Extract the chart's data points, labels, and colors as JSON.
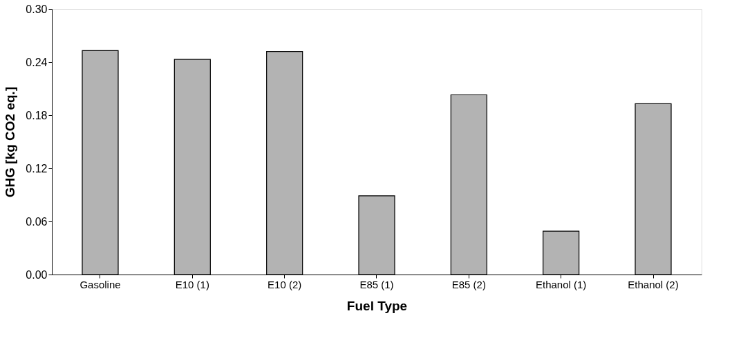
{
  "chart_data": {
    "type": "bar",
    "xlabel": "Fuel Type",
    "ylabel": "GHG [kg CO2 eq.]",
    "categories": [
      "Gasoline",
      "E10 (1)",
      "E10 (2)",
      "E85 (1)",
      "E85 (2)",
      "Ethanol (1)",
      "Ethanol (2)"
    ],
    "values": [
      0.253,
      0.243,
      0.252,
      0.089,
      0.203,
      0.049,
      0.193
    ],
    "color": "#b3b3b3",
    "ylim": [
      0,
      0.3
    ],
    "yticks": [
      {
        "value": 0,
        "label": "0.00"
      },
      {
        "value": 0.06,
        "label": "0.06"
      },
      {
        "value": 0.12,
        "label": "0.12"
      },
      {
        "value": 0.18,
        "label": "0.18"
      },
      {
        "value": 0.24,
        "label": "0.24"
      },
      {
        "value": 0.3,
        "label": "0.30"
      }
    ],
    "grid": false
  }
}
